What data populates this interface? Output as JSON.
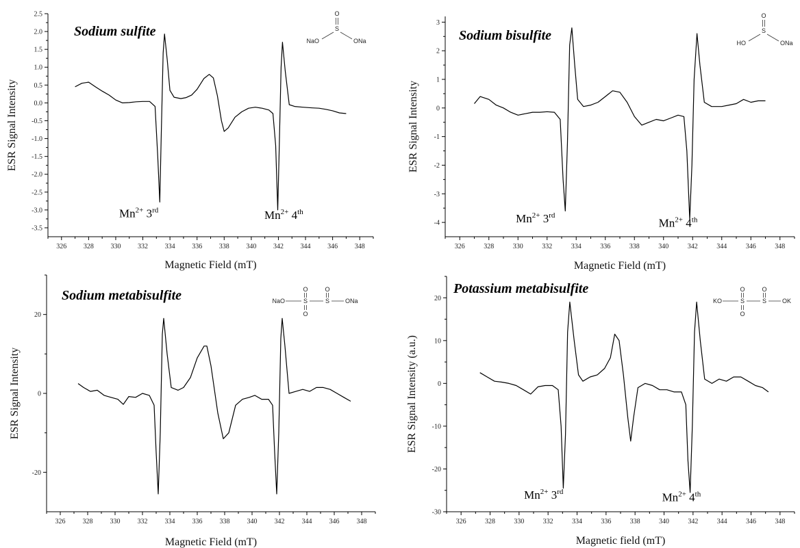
{
  "chart_data": [
    {
      "type": "line",
      "title": "Sodium sulfite",
      "xlabel": "Magnetic Field (mT)",
      "ylabel": "ESR Signal Intensity",
      "xlim": [
        325,
        349
      ],
      "ylim": [
        -3.75,
        2.5
      ],
      "xticks": [
        326,
        328,
        330,
        332,
        334,
        336,
        338,
        340,
        342,
        344,
        346,
        348
      ],
      "yticks": [
        -3.5,
        -3.0,
        -2.5,
        -2.0,
        -1.5,
        -1.0,
        -0.5,
        0.0,
        0.5,
        1.0,
        1.5,
        2.0,
        2.5
      ],
      "ytick_labels": [
        "-3.5",
        "-3.0",
        "-2.5",
        "-2.0",
        "-1.5",
        "-1.0",
        "-0.5",
        "0.0",
        "0.5",
        "1.0",
        "1.5",
        "2.0",
        "2.5"
      ],
      "annotations": [
        {
          "base": "Mn",
          "sup": "2+",
          "num": "3",
          "ord": "rd",
          "x": 331.7,
          "y": -3.2
        },
        {
          "base": "Mn",
          "sup": "2+",
          "num": "4",
          "ord": "th",
          "x": 342.4,
          "y": -3.25
        }
      ],
      "structure": {
        "kind": "sulfite",
        "labels": [
          "O",
          "S",
          "NaO",
          "ONa"
        ]
      },
      "series": [
        {
          "values": [
            [
              327.0,
              0.45
            ],
            [
              327.5,
              0.55
            ],
            [
              328.0,
              0.58
            ],
            [
              328.5,
              0.45
            ],
            [
              329.0,
              0.33
            ],
            [
              329.5,
              0.22
            ],
            [
              330.0,
              0.08
            ],
            [
              330.5,
              0.0
            ],
            [
              331.0,
              0.01
            ],
            [
              331.5,
              0.03
            ],
            [
              332.0,
              0.04
            ],
            [
              332.5,
              0.04
            ],
            [
              332.9,
              -0.1
            ],
            [
              333.1,
              -1.5
            ],
            [
              333.25,
              -2.78
            ],
            [
              333.35,
              -1.0
            ],
            [
              333.5,
              1.4
            ],
            [
              333.6,
              1.93
            ],
            [
              333.8,
              1.2
            ],
            [
              334.0,
              0.35
            ],
            [
              334.3,
              0.16
            ],
            [
              334.8,
              0.12
            ],
            [
              335.2,
              0.15
            ],
            [
              335.6,
              0.22
            ],
            [
              336.0,
              0.38
            ],
            [
              336.5,
              0.68
            ],
            [
              336.9,
              0.8
            ],
            [
              337.2,
              0.7
            ],
            [
              337.5,
              0.2
            ],
            [
              337.8,
              -0.5
            ],
            [
              338.0,
              -0.8
            ],
            [
              338.3,
              -0.7
            ],
            [
              338.8,
              -0.4
            ],
            [
              339.3,
              -0.25
            ],
            [
              339.8,
              -0.15
            ],
            [
              340.3,
              -0.12
            ],
            [
              340.8,
              -0.15
            ],
            [
              341.3,
              -0.2
            ],
            [
              341.6,
              -0.3
            ],
            [
              341.8,
              -1.2
            ],
            [
              341.95,
              -3.0
            ],
            [
              342.05,
              -1.5
            ],
            [
              342.2,
              1.0
            ],
            [
              342.3,
              1.7
            ],
            [
              342.5,
              0.9
            ],
            [
              342.8,
              -0.05
            ],
            [
              343.2,
              -0.1
            ],
            [
              343.8,
              -0.12
            ],
            [
              344.5,
              -0.14
            ],
            [
              345.0,
              -0.15
            ],
            [
              345.5,
              -0.18
            ],
            [
              346.0,
              -0.22
            ],
            [
              346.5,
              -0.28
            ],
            [
              347.0,
              -0.3
            ]
          ]
        }
      ]
    },
    {
      "type": "line",
      "title": "Sodium bisulfite",
      "xlabel": "Magnetic Field (mT)",
      "ylabel": "ESR Signal Intensity",
      "xlim": [
        325,
        349
      ],
      "ylim": [
        -4.5,
        3.2
      ],
      "xticks": [
        326,
        328,
        330,
        332,
        334,
        336,
        338,
        340,
        342,
        344,
        346,
        348
      ],
      "yticks": [
        -4,
        -3,
        -2,
        -1,
        0,
        1,
        2,
        3
      ],
      "ytick_labels": [
        "-4",
        "-3",
        "-2",
        "-1",
        "0",
        "1",
        "2",
        "3"
      ],
      "annotations": [
        {
          "base": "Mn",
          "sup": "2+",
          "num": "3",
          "ord": "rd",
          "x": 331.2,
          "y": -4.0
        },
        {
          "base": "Mn",
          "sup": "2+",
          "num": "4",
          "ord": "th",
          "x": 341.0,
          "y": -4.15
        }
      ],
      "structure": {
        "kind": "bisulfite",
        "labels": [
          "O",
          "S",
          "HO",
          "ONa"
        ]
      },
      "series": [
        {
          "values": [
            [
              327.0,
              0.15
            ],
            [
              327.4,
              0.4
            ],
            [
              328.0,
              0.3
            ],
            [
              328.5,
              0.1
            ],
            [
              329.0,
              0.0
            ],
            [
              329.5,
              -0.15
            ],
            [
              330.0,
              -0.25
            ],
            [
              330.5,
              -0.2
            ],
            [
              331.0,
              -0.15
            ],
            [
              331.5,
              -0.15
            ],
            [
              332.0,
              -0.13
            ],
            [
              332.5,
              -0.15
            ],
            [
              332.9,
              -0.4
            ],
            [
              333.1,
              -2.5
            ],
            [
              333.25,
              -3.6
            ],
            [
              333.4,
              -1.2
            ],
            [
              333.55,
              2.2
            ],
            [
              333.7,
              2.8
            ],
            [
              333.9,
              1.5
            ],
            [
              334.1,
              0.3
            ],
            [
              334.5,
              0.05
            ],
            [
              335.0,
              0.1
            ],
            [
              335.5,
              0.2
            ],
            [
              336.0,
              0.4
            ],
            [
              336.5,
              0.6
            ],
            [
              337.0,
              0.55
            ],
            [
              337.5,
              0.2
            ],
            [
              338.0,
              -0.3
            ],
            [
              338.5,
              -0.6
            ],
            [
              339.0,
              -0.5
            ],
            [
              339.5,
              -0.4
            ],
            [
              340.0,
              -0.45
            ],
            [
              340.5,
              -0.35
            ],
            [
              341.0,
              -0.25
            ],
            [
              341.4,
              -0.3
            ],
            [
              341.6,
              -1.5
            ],
            [
              341.8,
              -3.9
            ],
            [
              341.95,
              -2.0
            ],
            [
              342.1,
              1.0
            ],
            [
              342.3,
              2.6
            ],
            [
              342.5,
              1.5
            ],
            [
              342.8,
              0.2
            ],
            [
              343.3,
              0.05
            ],
            [
              344.0,
              0.05
            ],
            [
              344.5,
              0.1
            ],
            [
              345.0,
              0.15
            ],
            [
              345.5,
              0.3
            ],
            [
              346.0,
              0.2
            ],
            [
              346.5,
              0.25
            ],
            [
              347.0,
              0.25
            ]
          ]
        }
      ]
    },
    {
      "type": "line",
      "title": "Sodium metabisulfite",
      "xlabel": "Magnetic Field (mT)",
      "ylabel": "ESR Signal Intensity",
      "xlim": [
        325,
        349
      ],
      "ylim": [
        -30,
        30
      ],
      "xticks": [
        326,
        328,
        330,
        332,
        334,
        336,
        338,
        340,
        342,
        344,
        346,
        348
      ],
      "yticks": [
        -20,
        0,
        20
      ],
      "ytick_labels": [
        "-20",
        "0",
        "20"
      ],
      "annotations": [],
      "structure": {
        "kind": "metabisulfite",
        "labels": [
          "O",
          "S",
          "NaO",
          "ONa"
        ]
      },
      "series": [
        {
          "values": [
            [
              327.3,
              2.5
            ],
            [
              327.7,
              1.5
            ],
            [
              328.2,
              0.5
            ],
            [
              328.7,
              0.8
            ],
            [
              329.2,
              -0.5
            ],
            [
              329.7,
              -1.0
            ],
            [
              330.2,
              -1.5
            ],
            [
              330.6,
              -2.8
            ],
            [
              331.0,
              -0.8
            ],
            [
              331.5,
              -1.0
            ],
            [
              332.0,
              0.0
            ],
            [
              332.5,
              -0.5
            ],
            [
              332.85,
              -3.0
            ],
            [
              333.0,
              -15.0
            ],
            [
              333.15,
              -25.5
            ],
            [
              333.3,
              -10.0
            ],
            [
              333.45,
              15.0
            ],
            [
              333.55,
              19.0
            ],
            [
              333.8,
              10.0
            ],
            [
              334.1,
              1.5
            ],
            [
              334.6,
              0.8
            ],
            [
              335.0,
              1.5
            ],
            [
              335.5,
              4.0
            ],
            [
              336.0,
              9.0
            ],
            [
              336.5,
              12.0
            ],
            [
              336.7,
              12.0
            ],
            [
              337.0,
              7.0
            ],
            [
              337.5,
              -5.0
            ],
            [
              337.9,
              -11.5
            ],
            [
              338.3,
              -10.0
            ],
            [
              338.8,
              -3.0
            ],
            [
              339.3,
              -1.5
            ],
            [
              339.8,
              -1.0
            ],
            [
              340.2,
              -0.5
            ],
            [
              340.7,
              -1.5
            ],
            [
              341.2,
              -1.5
            ],
            [
              341.5,
              -3.0
            ],
            [
              341.65,
              -15.0
            ],
            [
              341.8,
              -25.5
            ],
            [
              341.95,
              -10.0
            ],
            [
              342.1,
              14.0
            ],
            [
              342.2,
              19.0
            ],
            [
              342.4,
              12.0
            ],
            [
              342.7,
              0.0
            ],
            [
              343.2,
              0.5
            ],
            [
              343.7,
              1.0
            ],
            [
              344.2,
              0.5
            ],
            [
              344.7,
              1.5
            ],
            [
              345.2,
              1.5
            ],
            [
              345.7,
              1.0
            ],
            [
              346.2,
              0.0
            ],
            [
              346.7,
              -1.0
            ],
            [
              347.2,
              -2.0
            ]
          ]
        }
      ]
    },
    {
      "type": "line",
      "title": "Potassium metabisulfite",
      "xlabel": "Magnetic field (mT)",
      "ylabel": "ESR Signal Intensity (a.u.)",
      "xlim": [
        325,
        349
      ],
      "ylim": [
        -30,
        25
      ],
      "xticks": [
        326,
        328,
        330,
        332,
        334,
        336,
        338,
        340,
        342,
        344,
        346,
        348
      ],
      "yticks": [
        -30,
        -20,
        -10,
        0,
        10,
        20
      ],
      "ytick_labels": [
        "-30",
        "-20",
        "-10",
        "0",
        "10",
        "20"
      ],
      "annotations": [
        {
          "base": "Mn",
          "sup": "2+",
          "num": "3",
          "ord": "rd",
          "x": 331.7,
          "y": -27.0
        },
        {
          "base": "Mn",
          "sup": "2+",
          "num": "4",
          "ord": "th",
          "x": 341.2,
          "y": -27.5
        }
      ],
      "structure": {
        "kind": "metabisulfite",
        "labels": [
          "O",
          "S",
          "KO",
          "OK"
        ]
      },
      "series": [
        {
          "values": [
            [
              327.3,
              2.5
            ],
            [
              327.8,
              1.5
            ],
            [
              328.3,
              0.5
            ],
            [
              328.8,
              0.3
            ],
            [
              329.3,
              0.0
            ],
            [
              329.8,
              -0.5
            ],
            [
              330.3,
              -1.5
            ],
            [
              330.8,
              -2.5
            ],
            [
              331.3,
              -0.8
            ],
            [
              331.8,
              -0.5
            ],
            [
              332.3,
              -0.5
            ],
            [
              332.7,
              -1.5
            ],
            [
              332.9,
              -10.0
            ],
            [
              333.05,
              -24.5
            ],
            [
              333.2,
              -12.0
            ],
            [
              333.35,
              12.0
            ],
            [
              333.5,
              19.0
            ],
            [
              333.8,
              10.0
            ],
            [
              334.1,
              2.0
            ],
            [
              334.4,
              0.5
            ],
            [
              334.9,
              1.5
            ],
            [
              335.4,
              2.0
            ],
            [
              335.9,
              3.5
            ],
            [
              336.3,
              6.0
            ],
            [
              336.6,
              11.5
            ],
            [
              336.9,
              10.0
            ],
            [
              337.2,
              2.0
            ],
            [
              337.5,
              -8.0
            ],
            [
              337.7,
              -13.5
            ],
            [
              337.9,
              -8.0
            ],
            [
              338.2,
              -1.0
            ],
            [
              338.7,
              0.0
            ],
            [
              339.2,
              -0.5
            ],
            [
              339.7,
              -1.5
            ],
            [
              340.2,
              -1.5
            ],
            [
              340.7,
              -2.0
            ],
            [
              341.2,
              -2.0
            ],
            [
              341.5,
              -5.0
            ],
            [
              341.65,
              -18.0
            ],
            [
              341.8,
              -25.5
            ],
            [
              341.95,
              -10.0
            ],
            [
              342.1,
              12.0
            ],
            [
              342.25,
              19.0
            ],
            [
              342.5,
              10.0
            ],
            [
              342.8,
              1.0
            ],
            [
              343.3,
              0.0
            ],
            [
              343.8,
              1.0
            ],
            [
              344.3,
              0.5
            ],
            [
              344.8,
              1.5
            ],
            [
              345.3,
              1.5
            ],
            [
              345.8,
              0.5
            ],
            [
              346.3,
              -0.5
            ],
            [
              346.8,
              -1.0
            ],
            [
              347.2,
              -2.0
            ]
          ]
        }
      ]
    }
  ]
}
